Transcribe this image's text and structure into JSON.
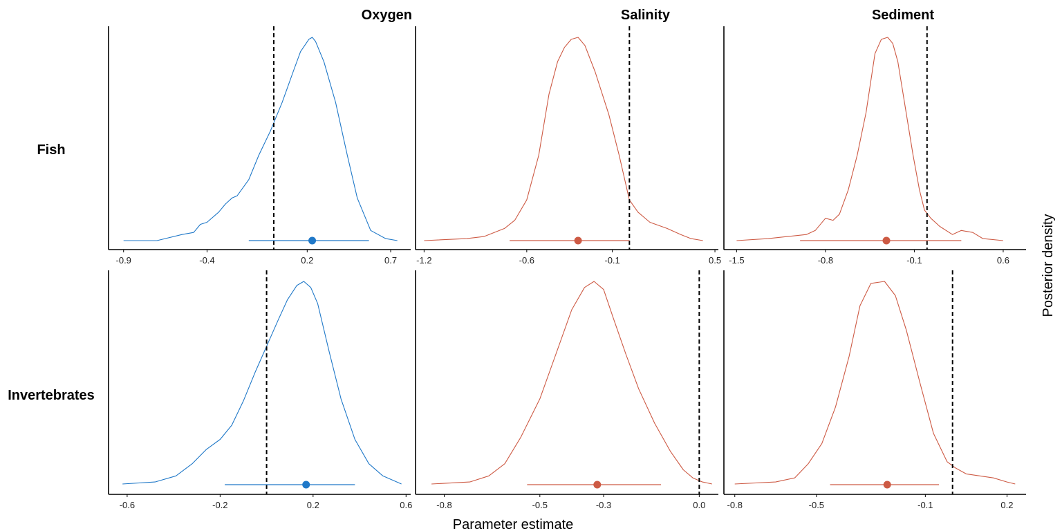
{
  "xlabel": "Parameter estimate",
  "ylabel": "Posterior density",
  "colors": {
    "oxygen": "#1f78c8",
    "other": "#cd5a44",
    "axis": "#000000",
    "reference_line": "#000000"
  },
  "column_titles": [
    "Oxygen",
    "Salinity",
    "Sediment"
  ],
  "row_labels": [
    "Fish",
    "Invertebrates"
  ],
  "chart_data": [
    {
      "type": "area",
      "row": "Fish",
      "column": "Oxygen",
      "color": "#1f78c8",
      "xlim": [
        -0.99,
        0.82
      ],
      "xticks": [
        -0.9,
        -0.4,
        0.2,
        0.7
      ],
      "xtick_labels": [
        "-0.9",
        "-0.4",
        "0.2",
        "0.7"
      ],
      "reference_line": 0.0,
      "point_estimate": 0.23,
      "interval": [
        -0.15,
        0.57
      ],
      "density_x": [
        -0.9,
        -0.7,
        -0.55,
        -0.48,
        -0.44,
        -0.4,
        -0.33,
        -0.29,
        -0.25,
        -0.22,
        -0.15,
        -0.09,
        -0.02,
        0.05,
        0.12,
        0.16,
        0.21,
        0.23,
        0.25,
        0.3,
        0.37,
        0.44,
        0.5,
        0.58,
        0.67,
        0.74
      ],
      "density_y": [
        0.0,
        0.0,
        0.03,
        0.04,
        0.08,
        0.09,
        0.14,
        0.18,
        0.21,
        0.22,
        0.3,
        0.42,
        0.54,
        0.68,
        0.84,
        0.93,
        0.99,
        1.0,
        0.98,
        0.88,
        0.68,
        0.42,
        0.21,
        0.05,
        0.01,
        0.0
      ]
    },
    {
      "type": "area",
      "row": "Fish",
      "column": "Salinity",
      "color": "#cd5a44",
      "xlim": [
        -1.25,
        0.52
      ],
      "xticks": [
        -1.2,
        -0.6,
        -0.1,
        0.5
      ],
      "xtick_labels": [
        "-1.2",
        "-0.6",
        "-0.1",
        "0.5"
      ],
      "reference_line": 0.0,
      "point_estimate": -0.3,
      "interval": [
        -0.7,
        0.0
      ],
      "density_x": [
        -1.2,
        -0.95,
        -0.85,
        -0.73,
        -0.67,
        -0.6,
        -0.53,
        -0.47,
        -0.42,
        -0.38,
        -0.34,
        -0.3,
        -0.26,
        -0.2,
        -0.12,
        -0.06,
        0.0,
        0.05,
        0.12,
        0.22,
        0.3,
        0.36,
        0.43
      ],
      "density_y": [
        0.0,
        0.01,
        0.02,
        0.06,
        0.1,
        0.2,
        0.42,
        0.72,
        0.88,
        0.95,
        0.99,
        1.0,
        0.96,
        0.83,
        0.62,
        0.42,
        0.2,
        0.14,
        0.09,
        0.06,
        0.03,
        0.01,
        0.0
      ]
    },
    {
      "type": "area",
      "row": "Fish",
      "column": "Sediment",
      "color": "#cd5a44",
      "xlim": [
        -1.6,
        0.78
      ],
      "xticks": [
        -1.5,
        -0.8,
        -0.1,
        0.6
      ],
      "xtick_labels": [
        "-1.5",
        "-0.8",
        "-0.1",
        "0.6"
      ],
      "reference_line": 0.0,
      "point_estimate": -0.32,
      "interval": [
        -1.0,
        0.27
      ],
      "density_x": [
        -1.5,
        -1.25,
        -1.1,
        -0.95,
        -0.88,
        -0.8,
        -0.74,
        -0.69,
        -0.62,
        -0.55,
        -0.48,
        -0.41,
        -0.36,
        -0.31,
        -0.27,
        -0.23,
        -0.17,
        -0.11,
        -0.06,
        -0.02,
        0.03,
        0.1,
        0.2,
        0.27,
        0.36,
        0.44,
        0.6
      ],
      "density_y": [
        0.0,
        0.01,
        0.02,
        0.03,
        0.05,
        0.11,
        0.1,
        0.13,
        0.25,
        0.42,
        0.63,
        0.92,
        0.99,
        1.0,
        0.97,
        0.88,
        0.65,
        0.42,
        0.25,
        0.15,
        0.11,
        0.07,
        0.03,
        0.05,
        0.04,
        0.01,
        0.0
      ]
    },
    {
      "type": "area",
      "row": "Invertebrates",
      "column": "Oxygen",
      "color": "#1f78c8",
      "xlim": [
        -0.68,
        0.62
      ],
      "xticks": [
        -0.6,
        -0.2,
        0.2,
        0.6
      ],
      "xtick_labels": [
        "-0.6",
        "-0.2",
        "0.2",
        "0.6"
      ],
      "reference_line": 0.0,
      "point_estimate": 0.17,
      "interval": [
        -0.18,
        0.38
      ],
      "density_x": [
        -0.62,
        -0.48,
        -0.39,
        -0.32,
        -0.26,
        -0.2,
        -0.15,
        -0.1,
        -0.05,
        0.0,
        0.05,
        0.09,
        0.13,
        0.16,
        0.19,
        0.22,
        0.27,
        0.32,
        0.38,
        0.44,
        0.5,
        0.58
      ],
      "density_y": [
        0.0,
        0.01,
        0.04,
        0.1,
        0.17,
        0.22,
        0.29,
        0.41,
        0.55,
        0.68,
        0.81,
        0.91,
        0.98,
        1.0,
        0.97,
        0.89,
        0.65,
        0.42,
        0.22,
        0.1,
        0.04,
        0.0
      ]
    },
    {
      "type": "area",
      "row": "Invertebrates",
      "column": "Salinity",
      "color": "#cd5a44",
      "xlim": [
        -0.89,
        0.06
      ],
      "xticks": [
        -0.8,
        -0.5,
        -0.3,
        0.0
      ],
      "xtick_labels": [
        "-0.8",
        "-0.5",
        "-0.3",
        "0.0"
      ],
      "reference_line": 0.0,
      "point_estimate": -0.32,
      "interval": [
        -0.54,
        -0.12
      ],
      "density_x": [
        -0.84,
        -0.72,
        -0.66,
        -0.61,
        -0.56,
        -0.5,
        -0.45,
        -0.4,
        -0.36,
        -0.33,
        -0.3,
        -0.27,
        -0.23,
        -0.19,
        -0.14,
        -0.09,
        -0.05,
        -0.02,
        0.01,
        0.04
      ],
      "density_y": [
        0.0,
        0.01,
        0.04,
        0.1,
        0.23,
        0.42,
        0.64,
        0.86,
        0.97,
        1.0,
        0.96,
        0.82,
        0.64,
        0.47,
        0.3,
        0.16,
        0.07,
        0.03,
        0.01,
        0.0
      ]
    },
    {
      "type": "area",
      "row": "Invertebrates",
      "column": "Sediment",
      "color": "#cd5a44",
      "xlim": [
        -0.84,
        0.27
      ],
      "xticks": [
        -0.8,
        -0.5,
        -0.1,
        0.2
      ],
      "xtick_labels": [
        "-0.8",
        "-0.5",
        "-0.1",
        "0.2"
      ],
      "reference_line": 0.0,
      "point_estimate": -0.24,
      "interval": [
        -0.45,
        -0.05
      ],
      "density_x": [
        -0.8,
        -0.65,
        -0.58,
        -0.53,
        -0.48,
        -0.43,
        -0.38,
        -0.34,
        -0.3,
        -0.25,
        -0.21,
        -0.17,
        -0.12,
        -0.07,
        -0.02,
        0.01,
        0.05,
        0.1,
        0.15,
        0.2,
        0.23
      ],
      "density_y": [
        0.0,
        0.01,
        0.03,
        0.1,
        0.2,
        0.38,
        0.63,
        0.88,
        0.99,
        1.0,
        0.93,
        0.76,
        0.5,
        0.25,
        0.11,
        0.08,
        0.05,
        0.04,
        0.03,
        0.01,
        0.0
      ]
    }
  ]
}
